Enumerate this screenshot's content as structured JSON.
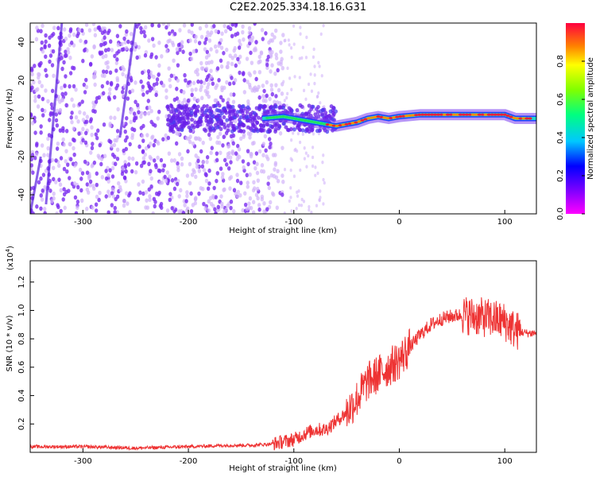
{
  "title": "C2E2.2025.334.18.16.G31",
  "colors": {
    "axis": "#000000",
    "snr_line": "#ee3333",
    "spec_purple": "#7b2cf0",
    "spec_light": "#d2b4fa",
    "spec_red": "#e8203a",
    "spec_cyan": "#20d8d0",
    "spec_green": "#22e060"
  },
  "chart_data": [
    {
      "type": "heatmap",
      "name": "spectrogram",
      "xlabel": "Height of straight line (km)",
      "ylabel": "Frequency (Hz)",
      "xlim": [
        -350,
        130
      ],
      "ylim": [
        -50,
        50
      ],
      "xticks": [
        -300,
        -200,
        -100,
        0,
        100
      ],
      "yticks": [
        -40,
        -20,
        0,
        20,
        40
      ],
      "colorbar": {
        "label": "Normalized spectral amplitude",
        "range": [
          0,
          1
        ],
        "ticks": [
          "0.0",
          "0.2",
          "0.4",
          "0.6",
          "0.8"
        ],
        "tick_values": [
          0.0,
          0.2,
          0.4,
          0.6,
          0.8
        ]
      },
      "description_track": {
        "x": [
          -130,
          -110,
          -90,
          -70,
          -60,
          -50,
          -40,
          -30,
          -20,
          -10,
          0,
          20,
          40,
          60,
          80,
          100,
          110,
          130
        ],
        "freq": [
          0,
          1,
          -1,
          -3,
          -4,
          -3,
          -2,
          0,
          1,
          0,
          1,
          2,
          2,
          2,
          2,
          2,
          0,
          0
        ]
      }
    },
    {
      "type": "line",
      "name": "snr",
      "xlabel": "Height of straight line (km)",
      "ylabel": "SNR (10 * v/v)",
      "scale_label": "(x10",
      "scale_exponent": "4",
      "scale_suffix": ")",
      "xlim": [
        -350,
        130
      ],
      "ylim": [
        0,
        1.35
      ],
      "xticks": [
        -300,
        -200,
        -100,
        0,
        100
      ],
      "yticks": [
        0.2,
        0.4,
        0.6,
        0.8,
        1.0,
        1.2
      ],
      "ytick_labels": [
        "0.2",
        "0.4",
        "0.6",
        "0.8",
        "1.0",
        "1.2"
      ],
      "x": [
        -350,
        -300,
        -250,
        -200,
        -160,
        -140,
        -120,
        -100,
        -90,
        -80,
        -70,
        -60,
        -50,
        -40,
        -30,
        -20,
        -10,
        0,
        10,
        20,
        30,
        40,
        50,
        60,
        70,
        80,
        90,
        100,
        110,
        120,
        130
      ],
      "values": [
        0.04,
        0.04,
        0.03,
        0.04,
        0.05,
        0.05,
        0.06,
        0.09,
        0.13,
        0.16,
        0.16,
        0.22,
        0.28,
        0.38,
        0.5,
        0.55,
        0.6,
        0.65,
        0.74,
        0.83,
        0.9,
        0.94,
        0.96,
        0.97,
        0.96,
        0.95,
        0.94,
        0.92,
        0.86,
        0.84,
        0.84
      ]
    }
  ]
}
